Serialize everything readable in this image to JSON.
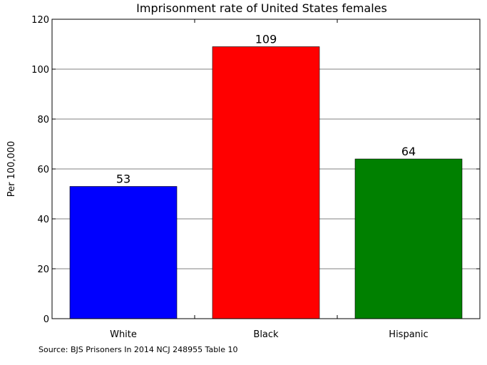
{
  "chart_data": {
    "type": "bar",
    "title": "Imprisonment rate of United States females",
    "ylabel": "Per 100,000",
    "xlabel": "",
    "categories": [
      "White",
      "Black",
      "Hispanic"
    ],
    "values": [
      53,
      109,
      64
    ],
    "data_labels": [
      "53",
      "109",
      "64"
    ],
    "colors": [
      "#0000ff",
      "#ff0000",
      "#008000"
    ],
    "ylim": [
      0,
      120
    ],
    "yticks": [
      0,
      20,
      40,
      60,
      80,
      100,
      120
    ],
    "grid": "horizontal",
    "legend": "none"
  },
  "source_note": "Source: BJS Prisoners In 2014 NCJ 248955 Table 10"
}
